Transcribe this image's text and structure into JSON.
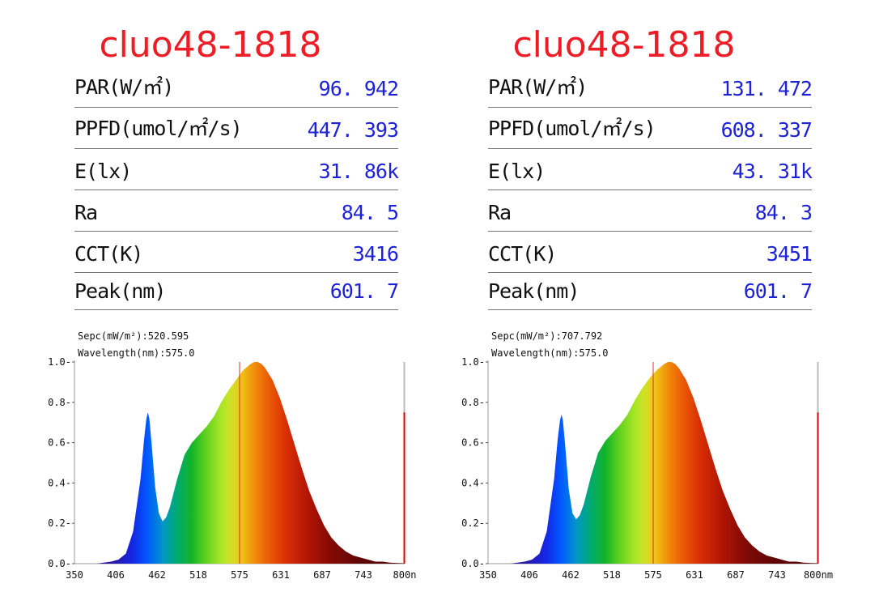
{
  "panels": [
    {
      "title": "cluo48-1818",
      "params": [
        {
          "label": "PAR(W/㎡)",
          "value": "96. 942"
        },
        {
          "label": "PPFD(umol/㎡/s)",
          "value": "447. 393"
        },
        {
          "label": "E(lx)",
          "value": "31. 86k"
        },
        {
          "label": "Ra",
          "value": "84. 5"
        },
        {
          "label": "CCT(K)",
          "value": "3416"
        },
        {
          "label": "Peak(nm)",
          "value": "601. 7"
        }
      ]
    },
    {
      "title": "cluo48-1818",
      "params": [
        {
          "label": "PAR(W/㎡)",
          "value": "131. 472"
        },
        {
          "label": "PPFD(umol/㎡/s)",
          "value": "608. 337"
        },
        {
          "label": "E(lx)",
          "value": "43. 31k"
        },
        {
          "label": "Ra",
          "value": "84. 3"
        },
        {
          "label": "CCT(K)",
          "value": "3451"
        },
        {
          "label": "Peak(nm)",
          "value": "601. 7"
        }
      ]
    }
  ],
  "chart_data": [
    {
      "type": "area",
      "annotations": [
        "Sepc(mW/m²):520.595",
        "Wavelength(nm):575.0"
      ],
      "x_tick_labels": [
        "350",
        "406",
        "462",
        "518",
        "575",
        "631",
        "687",
        "743",
        "800n"
      ],
      "y_tick_labels": [
        "0.0",
        "0.2",
        "0.4",
        "0.6",
        "0.8",
        "1.0"
      ],
      "xlim": [
        350,
        800
      ],
      "ylim": [
        0,
        1.0
      ],
      "cursor_wavelength": 575.0,
      "x": [
        350,
        380,
        400,
        410,
        420,
        430,
        440,
        445,
        448,
        450,
        452,
        455,
        460,
        465,
        470,
        475,
        480,
        490,
        500,
        510,
        520,
        530,
        540,
        550,
        560,
        570,
        580,
        590,
        595,
        600,
        605,
        610,
        620,
        630,
        640,
        650,
        660,
        670,
        680,
        690,
        700,
        710,
        720,
        730,
        740,
        750,
        760,
        770,
        780,
        790,
        800
      ],
      "y": [
        0.0,
        0.0,
        0.01,
        0.02,
        0.05,
        0.16,
        0.42,
        0.62,
        0.72,
        0.75,
        0.72,
        0.6,
        0.38,
        0.25,
        0.21,
        0.23,
        0.28,
        0.42,
        0.54,
        0.6,
        0.64,
        0.68,
        0.73,
        0.8,
        0.86,
        0.91,
        0.96,
        0.99,
        1.0,
        1.0,
        0.99,
        0.97,
        0.91,
        0.82,
        0.71,
        0.59,
        0.47,
        0.36,
        0.27,
        0.19,
        0.13,
        0.09,
        0.06,
        0.04,
        0.03,
        0.02,
        0.01,
        0.01,
        0.005,
        0.003,
        0.002
      ]
    },
    {
      "type": "area",
      "annotations": [
        "Sepc(mW/m²):707.792",
        "Wavelength(nm):575.0"
      ],
      "x_tick_labels": [
        "350",
        "406",
        "462",
        "518",
        "575",
        "631",
        "687",
        "743",
        "800nm"
      ],
      "y_tick_labels": [
        "0.0",
        "0.2",
        "0.4",
        "0.6",
        "0.8",
        "1.0"
      ],
      "xlim": [
        350,
        800
      ],
      "ylim": [
        0,
        1.0
      ],
      "cursor_wavelength": 575.0,
      "x": [
        350,
        380,
        400,
        410,
        420,
        430,
        440,
        445,
        448,
        450,
        452,
        455,
        460,
        465,
        470,
        475,
        480,
        490,
        500,
        510,
        520,
        530,
        540,
        550,
        560,
        570,
        580,
        590,
        595,
        600,
        605,
        610,
        620,
        630,
        640,
        650,
        660,
        670,
        680,
        690,
        700,
        710,
        720,
        730,
        740,
        750,
        760,
        770,
        780,
        790,
        800
      ],
      "y": [
        0.0,
        0.0,
        0.01,
        0.02,
        0.05,
        0.16,
        0.42,
        0.62,
        0.71,
        0.74,
        0.71,
        0.59,
        0.37,
        0.25,
        0.22,
        0.24,
        0.29,
        0.43,
        0.55,
        0.61,
        0.65,
        0.69,
        0.74,
        0.81,
        0.87,
        0.92,
        0.96,
        0.99,
        1.0,
        1.0,
        0.99,
        0.97,
        0.91,
        0.82,
        0.71,
        0.59,
        0.47,
        0.36,
        0.27,
        0.19,
        0.13,
        0.09,
        0.06,
        0.04,
        0.03,
        0.02,
        0.01,
        0.01,
        0.005,
        0.003,
        0.002
      ]
    }
  ],
  "colors": {
    "title": "#ee1c25",
    "value": "#1d22d8",
    "cursor": "#e03020",
    "end_marker": "#dd0000"
  }
}
